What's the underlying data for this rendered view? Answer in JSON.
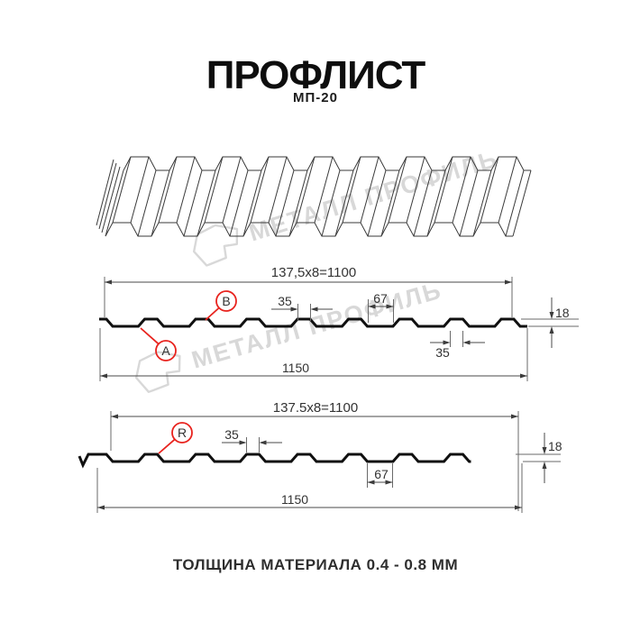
{
  "header": {
    "title": "ПРОФЛИСТ",
    "subtitle": "МП-20"
  },
  "footer": {
    "note": "ТОЛЩИНА МАТЕРИАЛА 0.4 - 0.8 ММ"
  },
  "watermark": {
    "brand": "МЕТАЛЛ ПРОФИЛЬ"
  },
  "colors": {
    "accent": "#e8231e",
    "drawing_line": "#3c3c3c",
    "profile_line": "#101010",
    "watermark": "#d8d8d8"
  },
  "front_view": {
    "dim_coverage": "137,5x8=1100",
    "dim_rib_top": "35",
    "dim_pitch": "67",
    "dim_height": "18",
    "dim_rib_right": "35",
    "dim_full_width": "1150",
    "point_labels": {
      "a": "A",
      "b": "B"
    }
  },
  "back_view": {
    "dim_coverage": "137.5x8=1100",
    "dim_rib_top": "35",
    "dim_pitch": "67",
    "dim_height": "18",
    "dim_full_width": "1150",
    "point_labels": {
      "r": "R"
    }
  }
}
